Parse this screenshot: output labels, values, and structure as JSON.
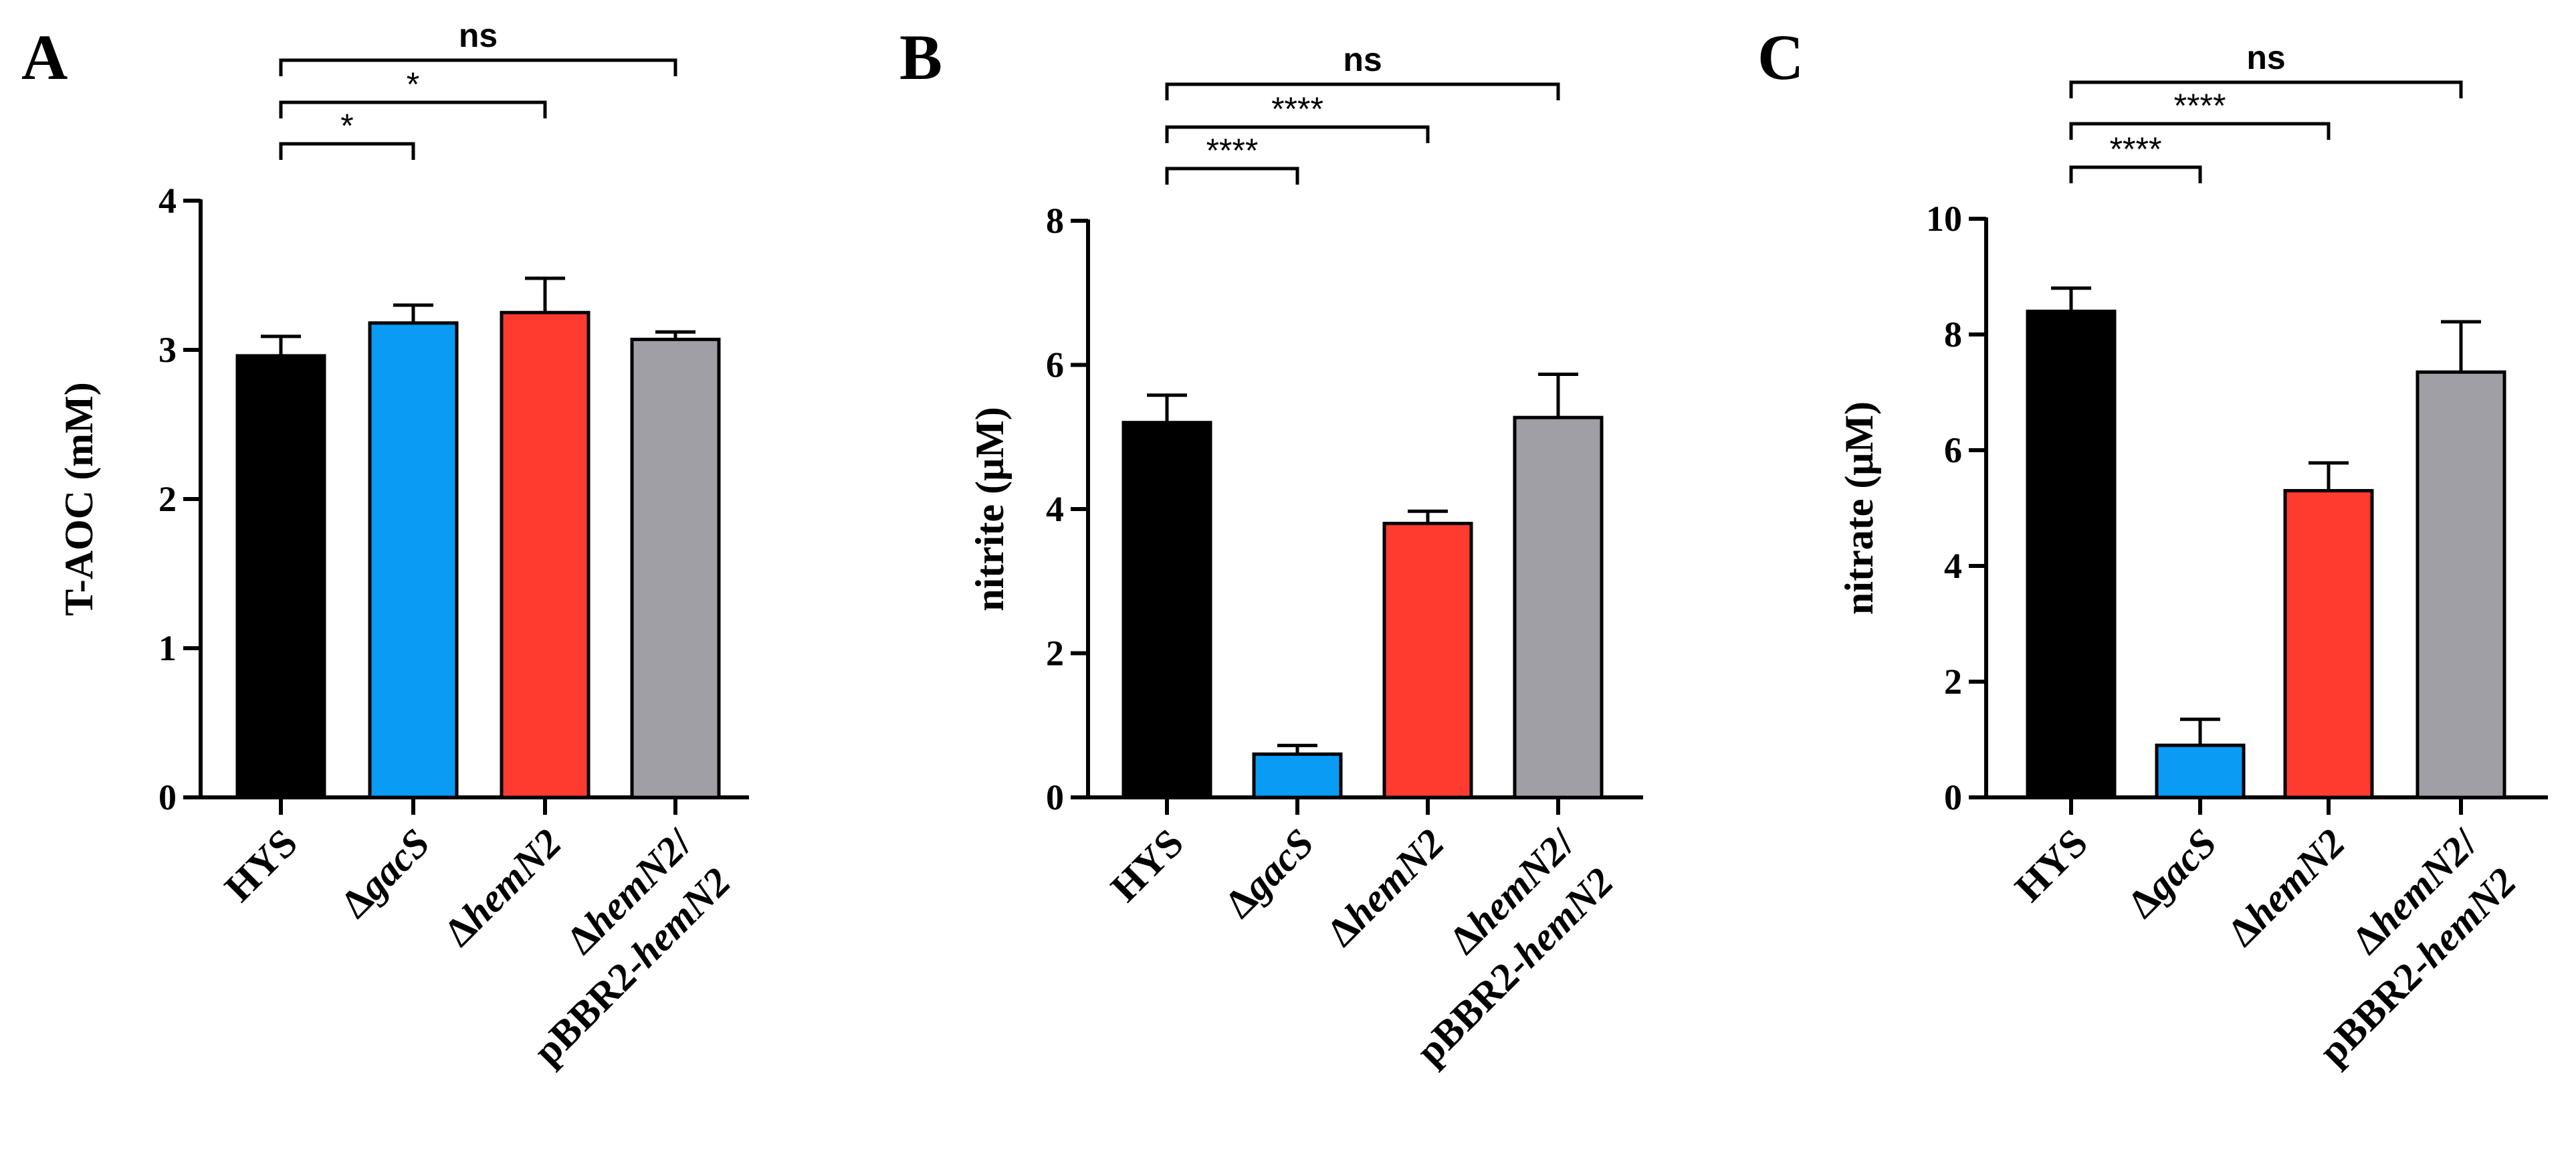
{
  "figure": {
    "panels": [
      "A",
      "B",
      "C"
    ]
  },
  "chart_data": [
    {
      "type": "bar",
      "panel": "A",
      "ylabel": "T-AOC (mM)",
      "xlabel": "",
      "ylim": [
        0,
        4
      ],
      "yticks": [
        0,
        1,
        2,
        3,
        4
      ],
      "categories": [
        "HYS",
        "ΔgacS",
        "ΔhemN2",
        "ΔhemN2/ pBBR2-hemN2"
      ],
      "category_parts": [
        [
          {
            "t": "HYS",
            "i": false
          }
        ],
        [
          {
            "t": "Δ",
            "i": false
          },
          {
            "t": "gacS",
            "i": true
          }
        ],
        [
          {
            "t": "Δ",
            "i": false
          },
          {
            "t": "hemN2",
            "i": true
          }
        ],
        [
          {
            "t": "Δ",
            "i": false
          },
          {
            "t": "hemN2",
            "i": true
          },
          {
            "t": "/",
            "i": false
          }
        ],
        [
          {
            "t": "pBBR2-",
            "i": false
          },
          {
            "t": "hemN2",
            "i": true
          }
        ]
      ],
      "values": [
        2.96,
        3.18,
        3.25,
        3.07
      ],
      "errors": [
        0.13,
        0.12,
        0.23,
        0.05
      ],
      "colors": [
        "#000000",
        "#0A9BF5",
        "#FF3B30",
        "#A09FA6"
      ],
      "comparisons": [
        {
          "from": 0,
          "to": 1,
          "label": "*"
        },
        {
          "from": 0,
          "to": 2,
          "label": "*"
        },
        {
          "from": 0,
          "to": 3,
          "label": "ns"
        }
      ]
    },
    {
      "type": "bar",
      "panel": "B",
      "ylabel": "nitrite (μM)",
      "xlabel": "",
      "ylim": [
        0,
        8
      ],
      "yticks": [
        0,
        2,
        4,
        6,
        8
      ],
      "categories": [
        "HYS",
        "ΔgacS",
        "ΔhemN2",
        "ΔhemN2/ pBBR2-hemN2"
      ],
      "values": [
        5.2,
        0.6,
        3.8,
        5.27
      ],
      "errors": [
        0.38,
        0.12,
        0.17,
        0.6
      ],
      "colors": [
        "#000000",
        "#0A9BF5",
        "#FF3B30",
        "#A09FA6"
      ],
      "comparisons": [
        {
          "from": 0,
          "to": 1,
          "label": "****"
        },
        {
          "from": 0,
          "to": 2,
          "label": "****"
        },
        {
          "from": 0,
          "to": 3,
          "label": "ns"
        }
      ]
    },
    {
      "type": "bar",
      "panel": "C",
      "ylabel": "nitrate (μM)",
      "xlabel": "",
      "ylim": [
        0,
        10
      ],
      "yticks": [
        0,
        2,
        4,
        6,
        8,
        10
      ],
      "categories": [
        "HYS",
        "ΔgacS",
        "ΔhemN2",
        "ΔhemN2/ pBBR2-hemN2"
      ],
      "values": [
        8.4,
        0.9,
        5.3,
        7.35
      ],
      "errors": [
        0.4,
        0.45,
        0.48,
        0.87
      ],
      "colors": [
        "#000000",
        "#0A9BF5",
        "#FF3B30",
        "#A09FA6"
      ],
      "comparisons": [
        {
          "from": 0,
          "to": 1,
          "label": "****"
        },
        {
          "from": 0,
          "to": 2,
          "label": "****"
        },
        {
          "from": 0,
          "to": 3,
          "label": "ns"
        }
      ]
    }
  ]
}
